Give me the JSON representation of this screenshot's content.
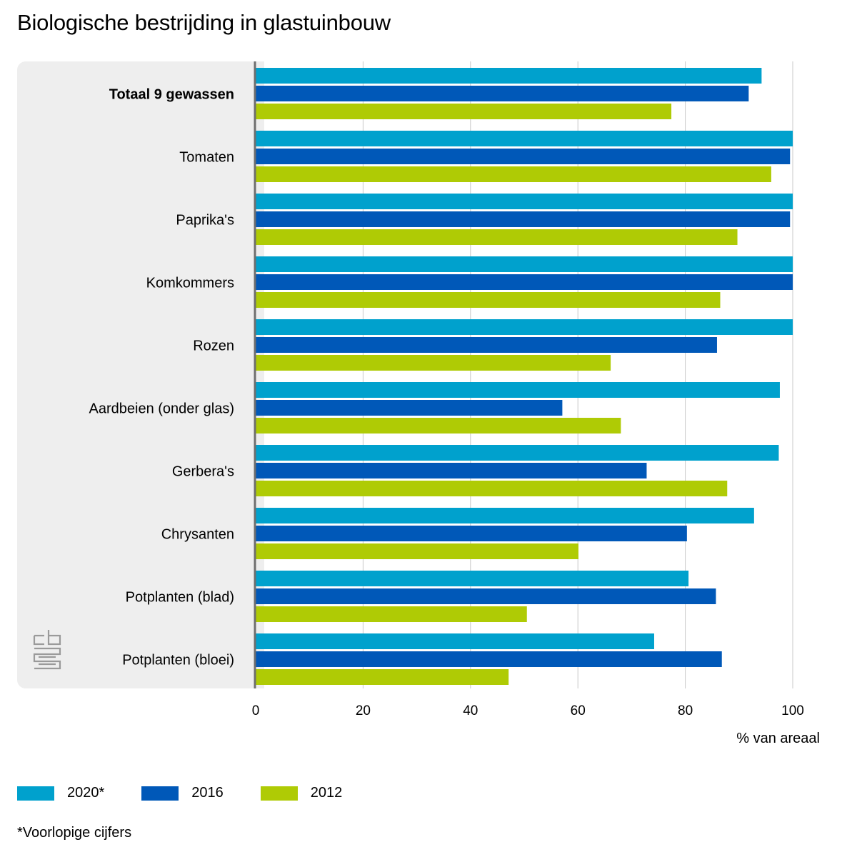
{
  "title": "Biologische bestrijding in glastuinbouw",
  "x_axis_title": "% van areaal",
  "footnote": "*Voorlopige cijfers",
  "logo_text": "cbs",
  "colors": {
    "2020*": "#00a1cd",
    "2016": "#0058b8",
    "2012": "#afcb05",
    "panel": "#eeeeee",
    "axis": "#6e6e6e",
    "grid": "#c8c8c8"
  },
  "chart_data": {
    "type": "bar",
    "orientation": "horizontal",
    "categories": [
      "Totaal 9 gewassen",
      "Tomaten",
      "Paprika's",
      "Komkommers",
      "Rozen",
      "Aardbeien (onder glas)",
      "Gerbera's",
      "Chrysanten",
      "Potplanten (blad)",
      "Potplanten (bloei)"
    ],
    "bold_categories": [
      "Totaal 9 gewassen"
    ],
    "series": [
      {
        "name": "2020*",
        "values": [
          94.2,
          100,
          100,
          100,
          100,
          97.6,
          97.4,
          92.8,
          80.6,
          74.2
        ]
      },
      {
        "name": "2016",
        "values": [
          91.8,
          99.5,
          99.5,
          100,
          85.9,
          57.1,
          72.8,
          80.3,
          85.7,
          86.8
        ]
      },
      {
        "name": "2012",
        "values": [
          77.4,
          96.0,
          89.7,
          86.5,
          66.1,
          68.0,
          87.8,
          60.1,
          50.5,
          47.1
        ]
      }
    ],
    "xlabel": "% van areaal",
    "xlim": [
      0,
      100
    ],
    "xticks": [
      0,
      20,
      40,
      60,
      80,
      100
    ],
    "grid": true,
    "legend": "bottom"
  }
}
